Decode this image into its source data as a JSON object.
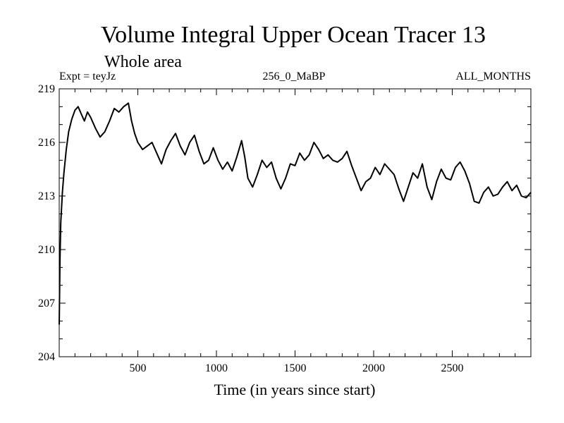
{
  "chart_data": {
    "type": "line",
    "title": "Volume Integral Upper Ocean Tracer 13",
    "subtitle": "Whole area",
    "expt_label": "Expt = teyJz",
    "run_label": "256_0_MaBP",
    "months_label": "ALL_MONTHS",
    "xlabel": "Time (in years since start)",
    "ylabel": "",
    "xlim": [
      0,
      3000
    ],
    "ylim": [
      204,
      219
    ],
    "x_ticks": [
      500,
      1000,
      1500,
      2000,
      2500
    ],
    "x_tick_labels": [
      "500",
      "1000",
      "1500",
      "2000",
      "2500"
    ],
    "y_ticks": [
      204,
      207,
      210,
      213,
      216,
      219
    ],
    "y_tick_labels": [
      "204",
      "207",
      "210",
      "213",
      "216",
      "219"
    ],
    "series": [
      {
        "name": "Tracer 13",
        "x": [
          0,
          5,
          10,
          20,
          30,
          45,
          60,
          80,
          100,
          120,
          140,
          160,
          180,
          200,
          230,
          260,
          290,
          320,
          350,
          380,
          410,
          440,
          460,
          480,
          500,
          530,
          560,
          590,
          620,
          650,
          680,
          710,
          740,
          770,
          800,
          830,
          860,
          890,
          920,
          950,
          980,
          1010,
          1040,
          1070,
          1100,
          1130,
          1160,
          1180,
          1200,
          1230,
          1260,
          1290,
          1320,
          1350,
          1380,
          1410,
          1440,
          1470,
          1500,
          1530,
          1560,
          1590,
          1620,
          1650,
          1680,
          1710,
          1740,
          1770,
          1800,
          1830,
          1860,
          1890,
          1920,
          1950,
          1980,
          2010,
          2040,
          2070,
          2100,
          2130,
          2160,
          2190,
          2220,
          2250,
          2280,
          2310,
          2340,
          2370,
          2400,
          2430,
          2460,
          2490,
          2520,
          2550,
          2580,
          2610,
          2640,
          2670,
          2700,
          2730,
          2760,
          2790,
          2820,
          2850,
          2880,
          2910,
          2940,
          2970,
          3000
        ],
        "values": [
          205.8,
          209.5,
          211.5,
          213.2,
          214.3,
          215.6,
          216.6,
          217.3,
          217.8,
          218.0,
          217.6,
          217.2,
          217.7,
          217.4,
          216.8,
          216.3,
          216.6,
          217.2,
          217.9,
          217.7,
          218.0,
          218.2,
          217.2,
          216.5,
          216.0,
          215.6,
          215.8,
          216.0,
          215.4,
          214.8,
          215.6,
          216.1,
          216.5,
          215.8,
          215.3,
          216.0,
          216.4,
          215.5,
          214.8,
          215.0,
          215.7,
          215.0,
          214.5,
          214.9,
          214.4,
          215.2,
          216.1,
          215.2,
          214.0,
          213.5,
          214.2,
          215.0,
          214.6,
          214.9,
          214.0,
          213.4,
          214.0,
          214.8,
          214.7,
          215.4,
          215.0,
          215.3,
          216.0,
          215.6,
          215.1,
          215.3,
          215.0,
          214.9,
          215.1,
          215.5,
          214.7,
          214.0,
          213.3,
          213.8,
          214.0,
          214.6,
          214.2,
          214.8,
          214.5,
          214.2,
          213.4,
          212.7,
          213.5,
          214.3,
          214.0,
          214.8,
          213.5,
          212.8,
          213.8,
          214.5,
          214.0,
          213.9,
          214.6,
          214.9,
          214.4,
          213.7,
          212.7,
          212.6,
          213.2,
          213.5,
          213.0,
          213.1,
          213.5,
          213.8,
          213.3,
          213.6,
          213.0,
          212.9,
          213.2
        ]
      }
    ]
  }
}
